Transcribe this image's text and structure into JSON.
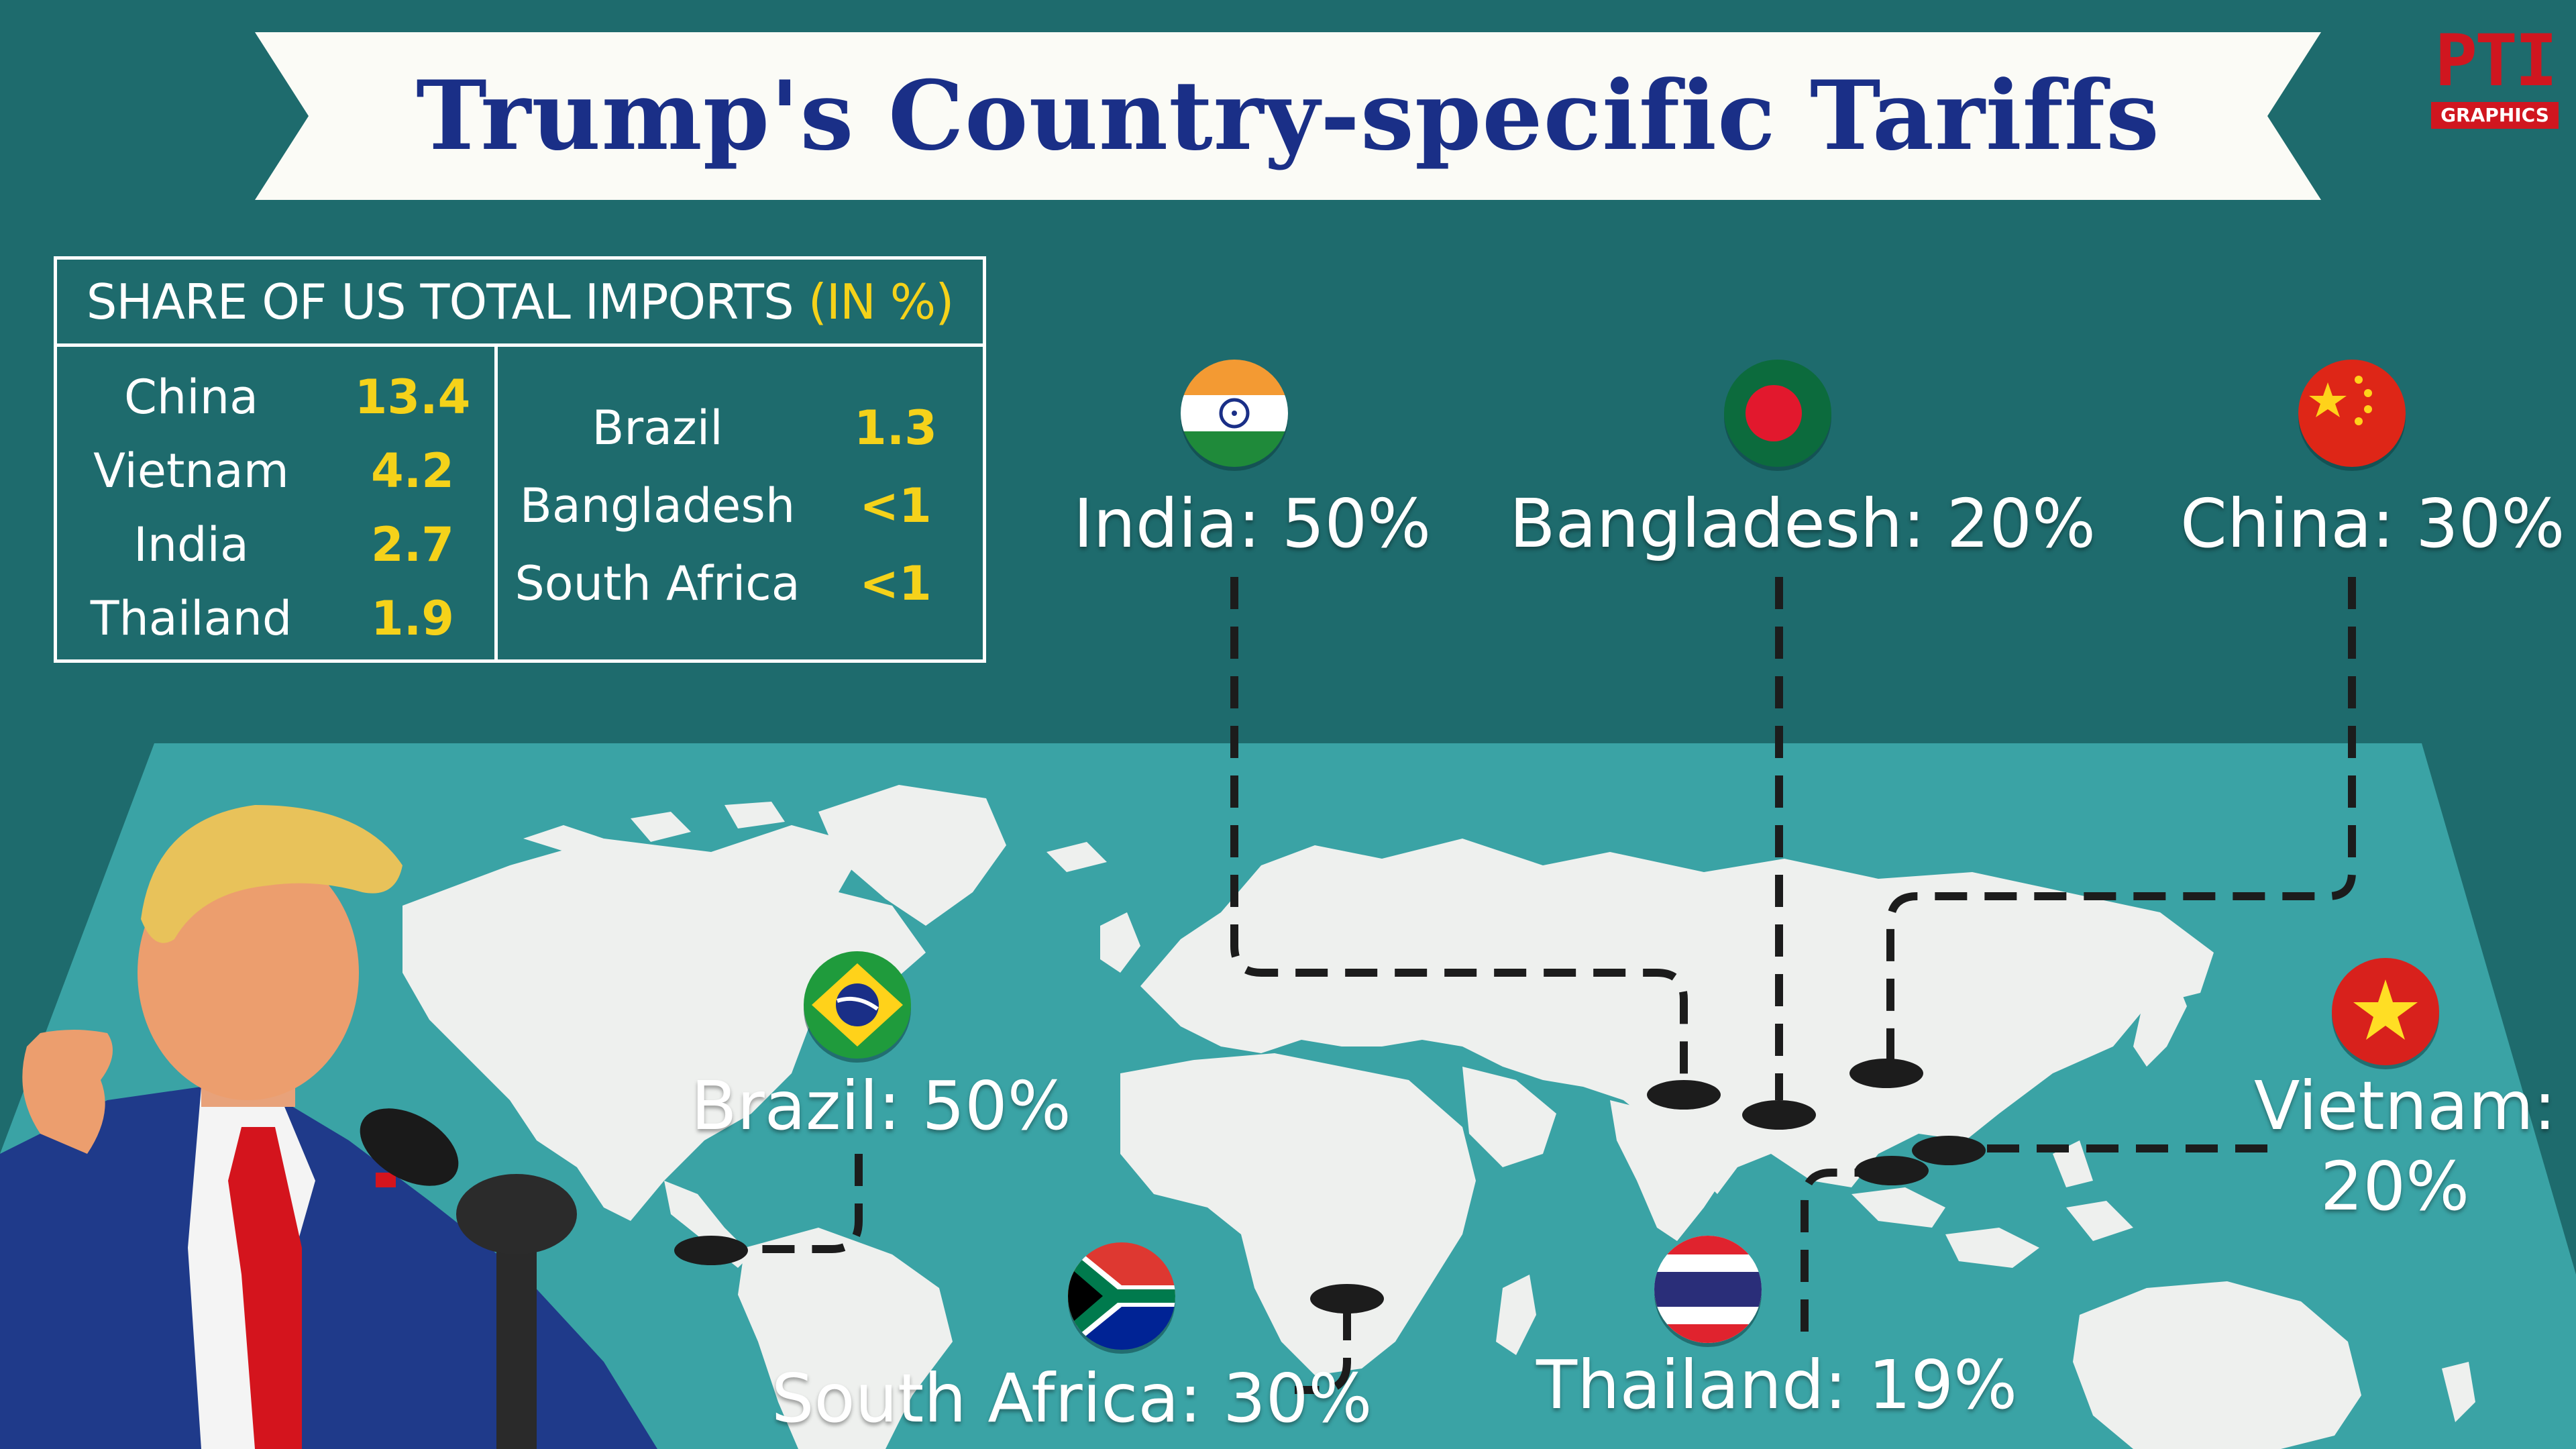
{
  "header": {
    "title": "Trump's Country-specific Tariffs"
  },
  "logo": {
    "mark": "PTI",
    "sub": "GRAPHICS"
  },
  "share_table": {
    "heading": "SHARE OF US TOTAL IMPORTS",
    "unit": "(IN %)",
    "left": [
      {
        "country": "China",
        "value": "13.4"
      },
      {
        "country": "Vietnam",
        "value": "4.2"
      },
      {
        "country": "India",
        "value": "2.7"
      },
      {
        "country": "Thailand",
        "value": "1.9"
      }
    ],
    "right": [
      {
        "country": "Brazil",
        "value": "1.3"
      },
      {
        "country": "Bangladesh",
        "value": "<1"
      },
      {
        "country": "South Africa",
        "value": "<1"
      }
    ]
  },
  "tariffs": {
    "india": {
      "label": "India: 50%",
      "flag": "india-flag-icon"
    },
    "bangladesh": {
      "label": "Bangladesh: 20%",
      "flag": "bangladesh-flag-icon"
    },
    "china": {
      "label": "China: 30%",
      "flag": "china-flag-icon"
    },
    "brazil": {
      "label": "Brazil: 50%",
      "flag": "brazil-flag-icon"
    },
    "vietnam": {
      "label_line1": "Vietnam:",
      "label_line2": "20%",
      "flag": "vietnam-flag-icon"
    },
    "south_africa": {
      "label": "South Africa: 30%",
      "flag": "south-africa-flag-icon"
    },
    "thailand": {
      "label": "Thailand: 19%",
      "flag": "thailand-flag-icon"
    }
  },
  "colors": {
    "background": "#1e6b6d",
    "map_ocean": "#3aa3a5",
    "land": "#eef0ee",
    "title_text": "#1a2f87",
    "accent_yellow": "#f5d21a",
    "logo_red": "#d0161f",
    "connector": "#1c1c1c"
  }
}
